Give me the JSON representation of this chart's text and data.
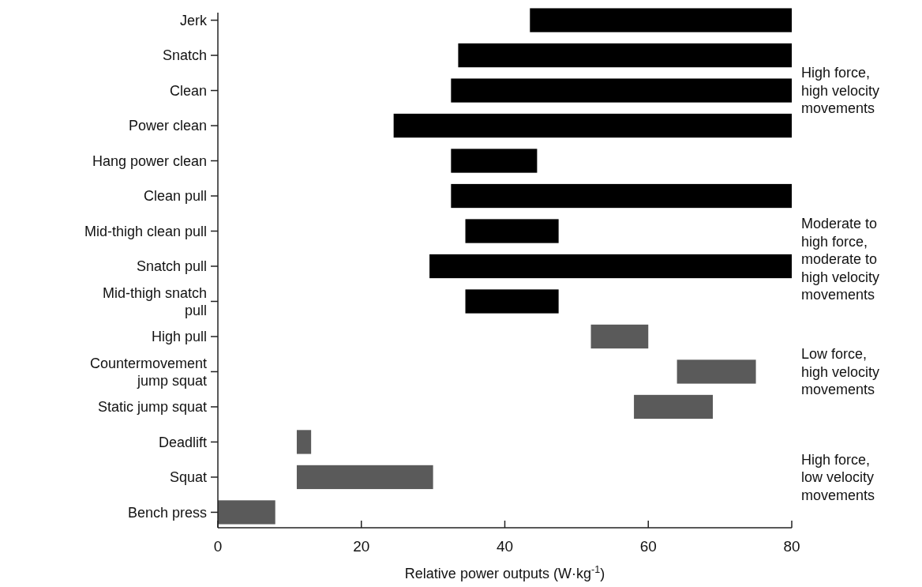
{
  "chart_data": {
    "type": "bar",
    "orientation": "horizontal",
    "categories": [
      "Jerk",
      "Snatch",
      "Clean",
      "Power clean",
      "Hang power clean",
      "Clean pull",
      "Mid-thigh clean pull",
      "Snatch pull",
      "Mid-thigh snatch pull",
      "High pull",
      "Countermovement jump squat",
      "Static jump squat",
      "Deadlift",
      "Squat",
      "Bench press"
    ],
    "base": [
      43.5,
      33.5,
      32.5,
      24.5,
      32.5,
      32.5,
      34.5,
      29.5,
      34.5,
      52,
      64,
      58,
      11,
      11,
      0
    ],
    "values": [
      36.5,
      46.5,
      47.5,
      55.5,
      12,
      47.5,
      13,
      50.5,
      13,
      8,
      11,
      11,
      2,
      19,
      8
    ],
    "colors": [
      "#000000",
      "#000000",
      "#000000",
      "#000000",
      "#000000",
      "#000000",
      "#000000",
      "#000000",
      "#000000",
      "#5a5a5a",
      "#5a5a5a",
      "#5a5a5a",
      "#5a5a5a",
      "#5a5a5a",
      "#5a5a5a"
    ],
    "xlim": [
      0,
      80
    ],
    "xticks": [
      0,
      20,
      40,
      60,
      80
    ],
    "xlabel": "Relative power outputs (W·kg$^{-1}$)",
    "annotations": [
      "High force, high velocity movements",
      "Moderate to high force, moderate to high velocity movements",
      "Low force, high velocity movements",
      "High force, low velocity movements"
    ],
    "grid": false
  }
}
